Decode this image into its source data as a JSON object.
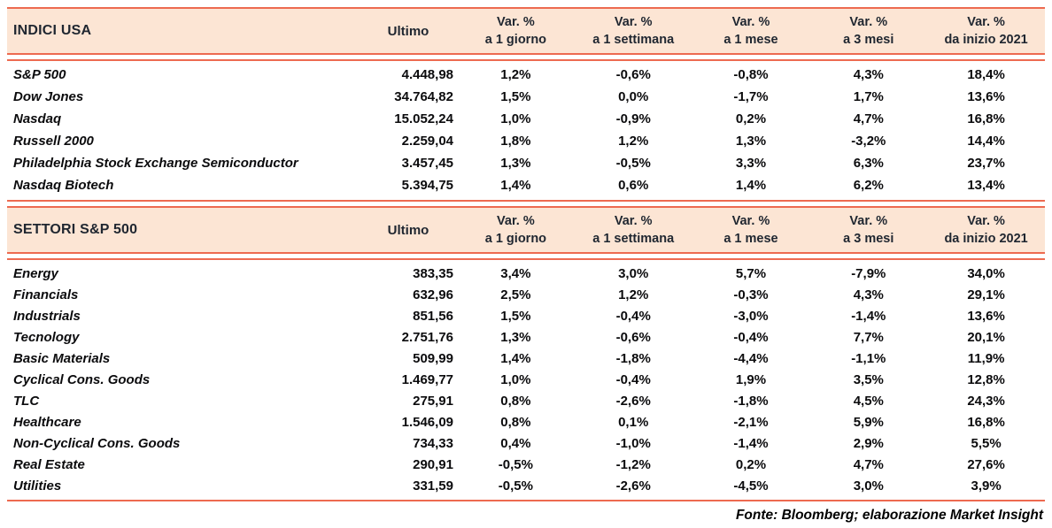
{
  "accent": {
    "line_color": "#ED6A50",
    "header_bg": "#FCE5D4",
    "header_text_color": "#1F2630",
    "body_text_color": "#000000"
  },
  "columns": {
    "ultimo": "Ultimo",
    "var_headers": [
      {
        "line1": "Var. %",
        "line2": "a 1 giorno"
      },
      {
        "line1": "Var. %",
        "line2": "a 1 settimana"
      },
      {
        "line1": "Var. %",
        "line2": "a 1 mese"
      },
      {
        "line1": "Var. %",
        "line2": "a 3 mesi"
      },
      {
        "line1": "Var. %",
        "line2": "da inizio 2021"
      }
    ]
  },
  "tables": [
    {
      "title": "INDICI USA",
      "rows": [
        {
          "name": "S&P 500",
          "ultimo": "4.448,98",
          "vars": [
            "1,2%",
            "-0,6%",
            "-0,8%",
            "4,3%",
            "18,4%"
          ]
        },
        {
          "name": "Dow Jones",
          "ultimo": "34.764,82",
          "vars": [
            "1,5%",
            "0,0%",
            "-1,7%",
            "1,7%",
            "13,6%"
          ]
        },
        {
          "name": "Nasdaq",
          "ultimo": "15.052,24",
          "vars": [
            "1,0%",
            "-0,9%",
            "0,2%",
            "4,7%",
            "16,8%"
          ]
        },
        {
          "name": "Russell 2000",
          "ultimo": "2.259,04",
          "vars": [
            "1,8%",
            "1,2%",
            "1,3%",
            "-3,2%",
            "14,4%"
          ]
        },
        {
          "name": "Philadelphia Stock Exchange Semiconductor",
          "ultimo": "3.457,45",
          "vars": [
            "1,3%",
            "-0,5%",
            "3,3%",
            "6,3%",
            "23,7%"
          ]
        },
        {
          "name": "Nasdaq Biotech",
          "ultimo": "5.394,75",
          "vars": [
            "1,4%",
            "0,6%",
            "1,4%",
            "6,2%",
            "13,4%"
          ]
        }
      ]
    },
    {
      "title": "SETTORI S&P 500",
      "rows": [
        {
          "name": "Energy",
          "ultimo": "383,35",
          "vars": [
            "3,4%",
            "3,0%",
            "5,7%",
            "-7,9%",
            "34,0%"
          ]
        },
        {
          "name": "Financials",
          "ultimo": "632,96",
          "vars": [
            "2,5%",
            "1,2%",
            "-0,3%",
            "4,3%",
            "29,1%"
          ]
        },
        {
          "name": "Industrials",
          "ultimo": "851,56",
          "vars": [
            "1,5%",
            "-0,4%",
            "-3,0%",
            "-1,4%",
            "13,6%"
          ]
        },
        {
          "name": "Tecnology",
          "ultimo": "2.751,76",
          "vars": [
            "1,3%",
            "-0,6%",
            "-0,4%",
            "7,7%",
            "20,1%"
          ]
        },
        {
          "name": "Basic Materials",
          "ultimo": "509,99",
          "vars": [
            "1,4%",
            "-1,8%",
            "-4,4%",
            "-1,1%",
            "11,9%"
          ]
        },
        {
          "name": "Cyclical Cons. Goods",
          "ultimo": "1.469,77",
          "vars": [
            "1,0%",
            "-0,4%",
            "1,9%",
            "3,5%",
            "12,8%"
          ]
        },
        {
          "name": "TLC",
          "ultimo": "275,91",
          "vars": [
            "0,8%",
            "-2,6%",
            "-1,8%",
            "4,5%",
            "24,3%"
          ]
        },
        {
          "name": "Healthcare",
          "ultimo": "1.546,09",
          "vars": [
            "0,8%",
            "0,1%",
            "-2,1%",
            "5,9%",
            "16,8%"
          ]
        },
        {
          "name": "Non-Cyclical Cons. Goods",
          "ultimo": "734,33",
          "vars": [
            "0,4%",
            "-1,0%",
            "-1,4%",
            "2,9%",
            "5,5%"
          ]
        },
        {
          "name": "Real Estate",
          "ultimo": "290,91",
          "vars": [
            "-0,5%",
            "-1,2%",
            "0,2%",
            "4,7%",
            "27,6%"
          ]
        },
        {
          "name": "Utilities",
          "ultimo": "331,59",
          "vars": [
            "-0,5%",
            "-2,6%",
            "-4,5%",
            "3,0%",
            "3,9%"
          ]
        }
      ]
    }
  ],
  "footer": {
    "source": "Fonte: Bloomberg; elaborazione Market Insight"
  }
}
